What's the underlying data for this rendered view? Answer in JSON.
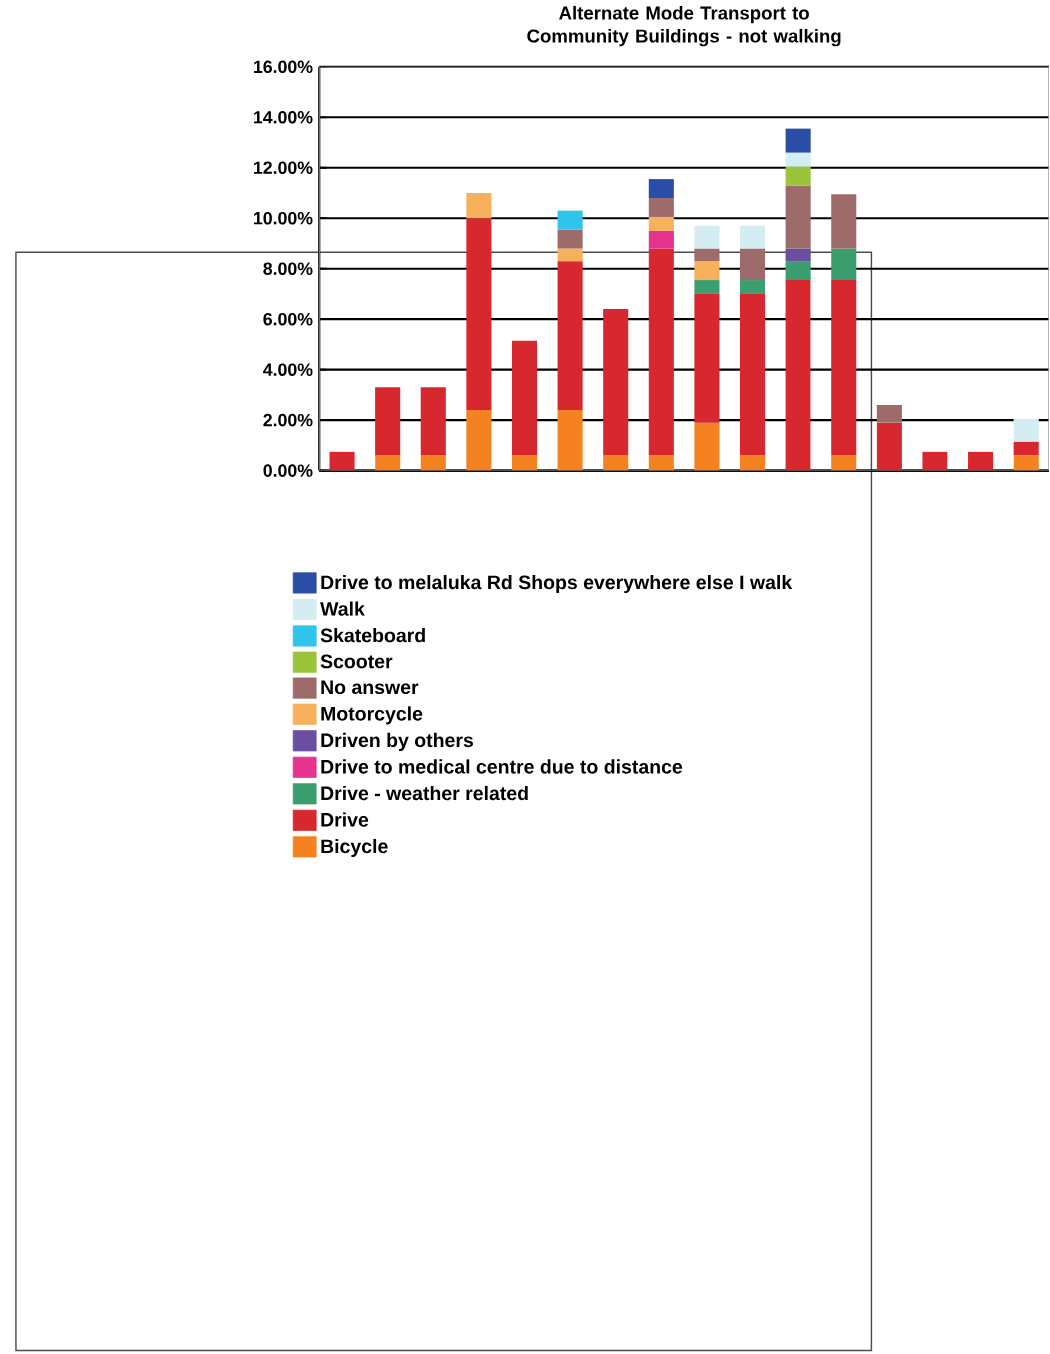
{
  "chart_data": {
    "type": "bar",
    "stacked": true,
    "title": "Alternate Mode Transport to Community Buildings - not walking",
    "categories": [
      null,
      null,
      null,
      null,
      null,
      null,
      null,
      null,
      null,
      null,
      null,
      null,
      null,
      null,
      null,
      null
    ],
    "series": [
      {
        "name": "Bicycle",
        "color": "#f58220",
        "values": [
          null,
          0.6,
          0.6,
          2.4,
          0.6,
          2.4,
          0.6,
          0.6,
          1.9,
          0.6,
          null,
          0.6,
          null,
          null,
          null,
          0.6
        ]
      },
      {
        "name": "Drive",
        "color": "#d7282f",
        "values": [
          0.75,
          2.7,
          2.7,
          7.6,
          4.55,
          5.9,
          5.8,
          8.2,
          5.1,
          6.4,
          7.55,
          6.95,
          1.9,
          0.75,
          0.75,
          0.55
        ]
      },
      {
        "name": "Drive - weather related",
        "color": "#3a9e6f",
        "values": [
          null,
          null,
          null,
          null,
          null,
          null,
          null,
          null,
          0.55,
          0.55,
          0.75,
          1.25,
          null,
          null,
          null,
          null
        ]
      },
      {
        "name": "Drive to medical centre due to distance",
        "color": "#e5338f",
        "values": [
          null,
          null,
          null,
          null,
          null,
          null,
          null,
          0.7,
          null,
          null,
          null,
          null,
          null,
          null,
          null,
          null
        ]
      },
      {
        "name": "Driven by others",
        "color": "#6a4ea0",
        "values": [
          null,
          null,
          null,
          null,
          null,
          null,
          null,
          null,
          null,
          null,
          0.5,
          null,
          null,
          null,
          null,
          null
        ]
      },
      {
        "name": "Motorcycle",
        "color": "#f7b05b",
        "values": [
          null,
          null,
          null,
          1.0,
          null,
          0.5,
          null,
          0.55,
          0.75,
          null,
          null,
          null,
          null,
          null,
          null,
          null
        ]
      },
      {
        "name": "No answer",
        "color": "#9e6b6b",
        "values": [
          null,
          null,
          null,
          null,
          null,
          0.75,
          null,
          0.75,
          0.5,
          1.25,
          2.5,
          2.15,
          0.7,
          null,
          null,
          null
        ]
      },
      {
        "name": "Scooter",
        "color": "#9bc43b",
        "values": [
          null,
          null,
          null,
          null,
          null,
          null,
          null,
          null,
          null,
          null,
          0.75,
          null,
          null,
          null,
          null,
          null
        ]
      },
      {
        "name": "Skateboard",
        "color": "#2fc4ec",
        "values": [
          null,
          null,
          null,
          null,
          null,
          0.75,
          null,
          null,
          null,
          null,
          null,
          null,
          null,
          null,
          null,
          null
        ]
      },
      {
        "name": "Walk",
        "color": "#d4edf3",
        "values": [
          null,
          null,
          null,
          null,
          null,
          null,
          null,
          null,
          0.9,
          0.9,
          0.55,
          null,
          null,
          null,
          null,
          0.9
        ]
      },
      {
        "name": "Drive to melaluka Rd Shops everywhere else I walk",
        "color": "#2a4ea6",
        "values": [
          null,
          null,
          null,
          null,
          null,
          null,
          null,
          0.75,
          null,
          null,
          0.95,
          null,
          null,
          null,
          null,
          null
        ]
      }
    ],
    "ylim": [
      0,
      16
    ],
    "yticks": [
      {
        "value": 0,
        "label": "0.00%"
      },
      {
        "value": 2,
        "label": "2.00%"
      },
      {
        "value": 4,
        "label": "4.00%"
      },
      {
        "value": 6,
        "label": "6.00%"
      },
      {
        "value": 8,
        "label": "8.00%"
      },
      {
        "value": 10,
        "label": "10.00%"
      },
      {
        "value": 12,
        "label": "12.00%"
      },
      {
        "value": 14,
        "label": "14.00%"
      },
      {
        "value": 16,
        "label": "16.00%"
      }
    ],
    "grid": "y",
    "legend": "bottom"
  }
}
